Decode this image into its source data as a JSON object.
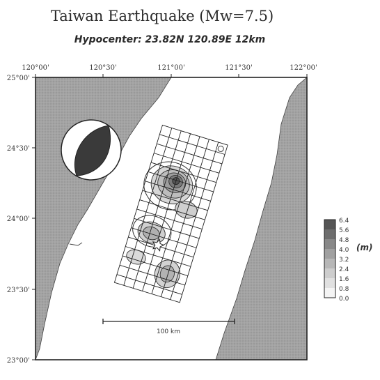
{
  "title": "Taiwan Earthquake (Mw=7.5)",
  "subtitle": "Hypocenter: 23.82N   120.89E   12km",
  "axes": {
    "lon_ticks": [
      "120°00'",
      "120°30'",
      "121°00'",
      "121°30'",
      "122°00'"
    ],
    "lat_ticks": [
      "25°00'",
      "24°30'",
      "24°00'",
      "23°30'",
      "23°00'"
    ]
  },
  "scale_bar": {
    "label": "100 km"
  },
  "colorbar": {
    "unit": "(m)",
    "levels": [
      "6.4",
      "5.6",
      "4.8",
      "4.0",
      "3.2",
      "2.4",
      "1.6",
      "0.8",
      "0.0"
    ]
  },
  "colors": {
    "land": "#9a9a9a",
    "sea": "#ffffff",
    "grid": "#222222",
    "beachball_compression": "#3a3a3a"
  }
}
